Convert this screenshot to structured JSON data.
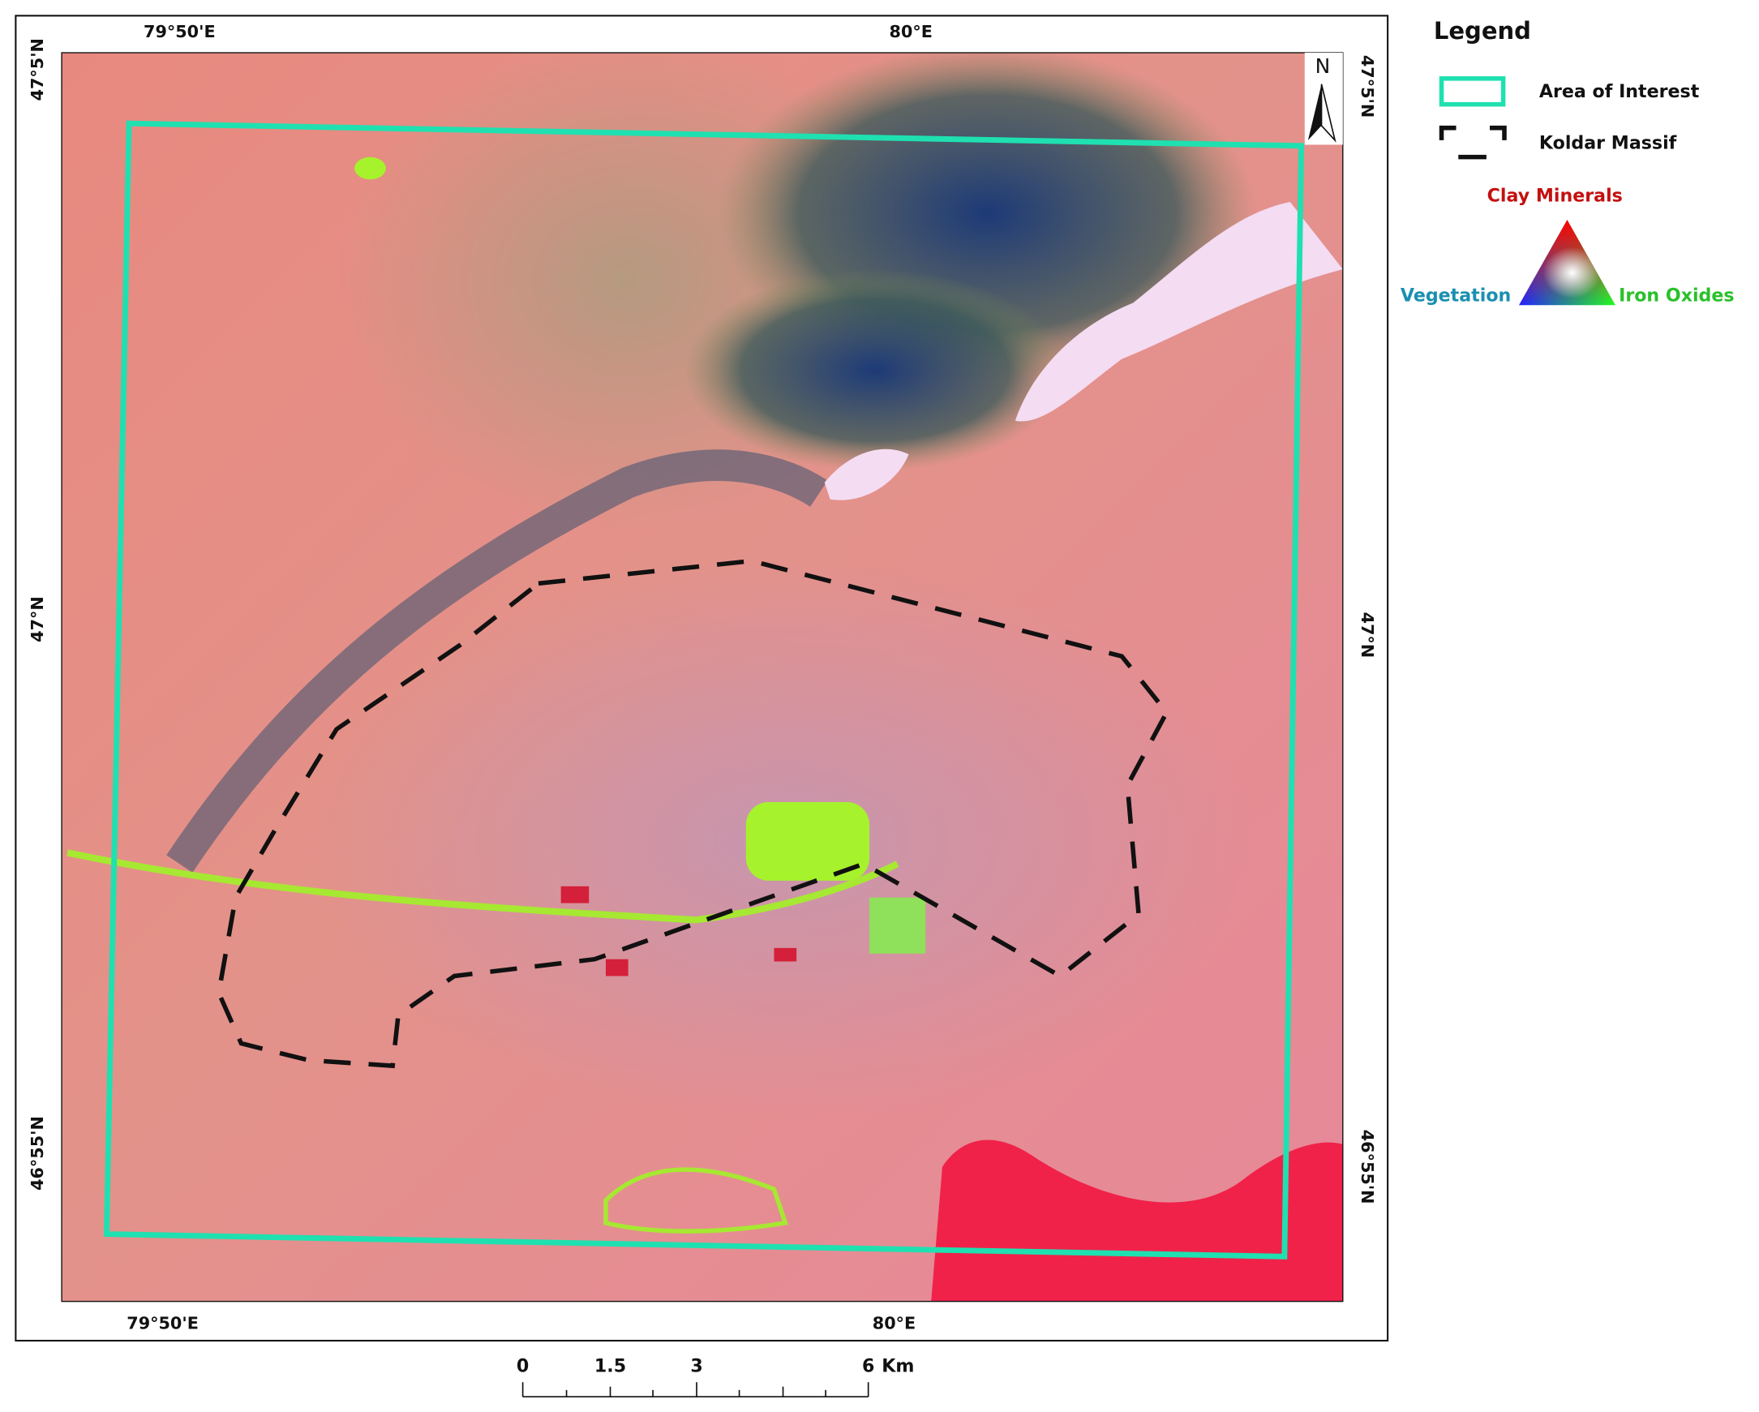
{
  "graticule": {
    "top": [
      "79°50'E",
      "80°E"
    ],
    "bottom": [
      "79°50'E",
      "80°E"
    ],
    "left": [
      "47°5'N",
      "47°N",
      "46°55'N"
    ],
    "right": [
      "47°5'N",
      "47°N",
      "46°55'N"
    ]
  },
  "north_arrow": "N",
  "legend": {
    "title": "Legend",
    "items": [
      "Area of Interest",
      "Koldar Massif"
    ],
    "ternary": {
      "top": "Clay Minerals",
      "left": "Vegetation",
      "right": "Iron Oxides"
    }
  },
  "scale_bar": {
    "labels": [
      0,
      1.5,
      3,
      6
    ],
    "unit": "Km"
  }
}
